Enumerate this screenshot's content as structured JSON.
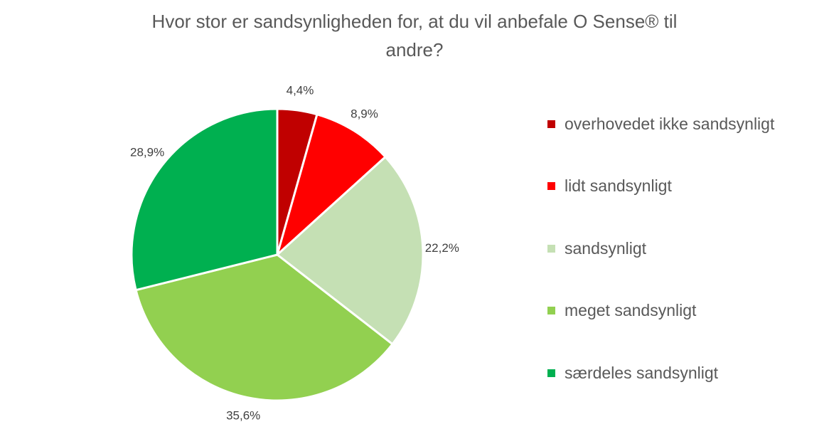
{
  "chart_data": {
    "type": "pie",
    "title_lines": [
      "Hvor stor er sandsynligheden for, at du vil anbefale O Sense® til",
      "andre?"
    ],
    "slices": [
      {
        "label": "overhovedet ikke sandsynligt",
        "value": 4.4,
        "value_label": "4,4%",
        "color": "#C00000"
      },
      {
        "label": "lidt sandsynligt",
        "value": 8.9,
        "value_label": "8,9%",
        "color": "#FF0000"
      },
      {
        "label": "sandsynligt",
        "value": 22.2,
        "value_label": "22,2%",
        "color": "#C5E0B4"
      },
      {
        "label": "meget sandsynligt",
        "value": 35.6,
        "value_label": "35,6%",
        "color": "#92D050"
      },
      {
        "label": "særdeles sandsynligt",
        "value": 28.9,
        "value_label": "28,9%",
        "color": "#00B050"
      }
    ],
    "start_angle": "12 o'clock",
    "direction": "clockwise",
    "legend_position": "right",
    "data_labels": "outside"
  }
}
